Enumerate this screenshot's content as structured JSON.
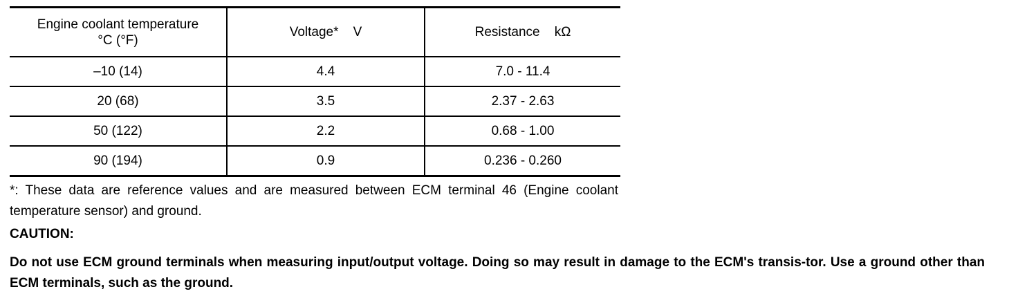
{
  "table": {
    "headers": [
      {
        "line1": "Engine coolant temperature",
        "line2": "°C (°F)"
      },
      {
        "line1": "Voltage*    V"
      },
      {
        "line1": "Resistance    kΩ"
      }
    ],
    "rows": [
      [
        "–10 (14)",
        "4.4",
        "7.0 - 11.4"
      ],
      [
        "20 (68)",
        "3.5",
        "2.37 - 2.63"
      ],
      [
        "50 (122)",
        "2.2",
        "0.68 - 1.00"
      ],
      [
        "90 (194)",
        "0.9",
        "0.236 - 0.260"
      ]
    ]
  },
  "footnote": "*: These data are reference values and are measured between ECM terminal 46 (Engine coolant temperature sensor) and ground.",
  "caution": {
    "title": "CAUTION:",
    "text": "Do not use ECM ground terminals when measuring input/output voltage. Doing so may result in damage to the ECM's transis-tor. Use a ground other than ECM terminals, such as the ground."
  }
}
